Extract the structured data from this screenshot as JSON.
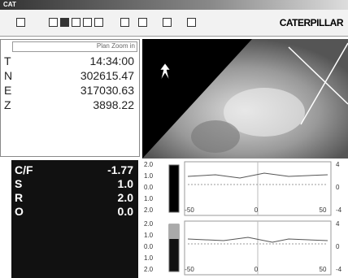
{
  "window": {
    "title": "CAT"
  },
  "toolbar": {
    "brand": "CATERPILLAR"
  },
  "position_panel": {
    "mode": "Plan Zoom in",
    "rows": [
      {
        "label": "T",
        "value": "14:34:00"
      },
      {
        "label": "N",
        "value": "302615.47"
      },
      {
        "label": "E",
        "value": "317030.63"
      },
      {
        "label": "Z",
        "value": "3898.22"
      }
    ]
  },
  "cut_fill_panel": {
    "rows": [
      {
        "label": "C/F",
        "value": "-1.77"
      },
      {
        "label": "S",
        "value": "1.0"
      },
      {
        "label": "R",
        "value": "2.0"
      },
      {
        "label": "O",
        "value": "0.0"
      }
    ]
  },
  "profile_graphs": [
    {
      "scale_labels": [
        "2.0",
        "1.0",
        "0.0",
        "1.0",
        "2.0"
      ],
      "x_labels": [
        "-50",
        "0",
        "50"
      ],
      "y_labels": [
        "4",
        "0",
        "-4"
      ]
    },
    {
      "scale_labels": [
        "2.0",
        "1.0",
        "0.0",
        "1.0",
        "2.0"
      ],
      "x_labels": [
        "-50",
        "0",
        "50"
      ],
      "y_labels": [
        "4",
        "0",
        "-4"
      ]
    }
  ]
}
